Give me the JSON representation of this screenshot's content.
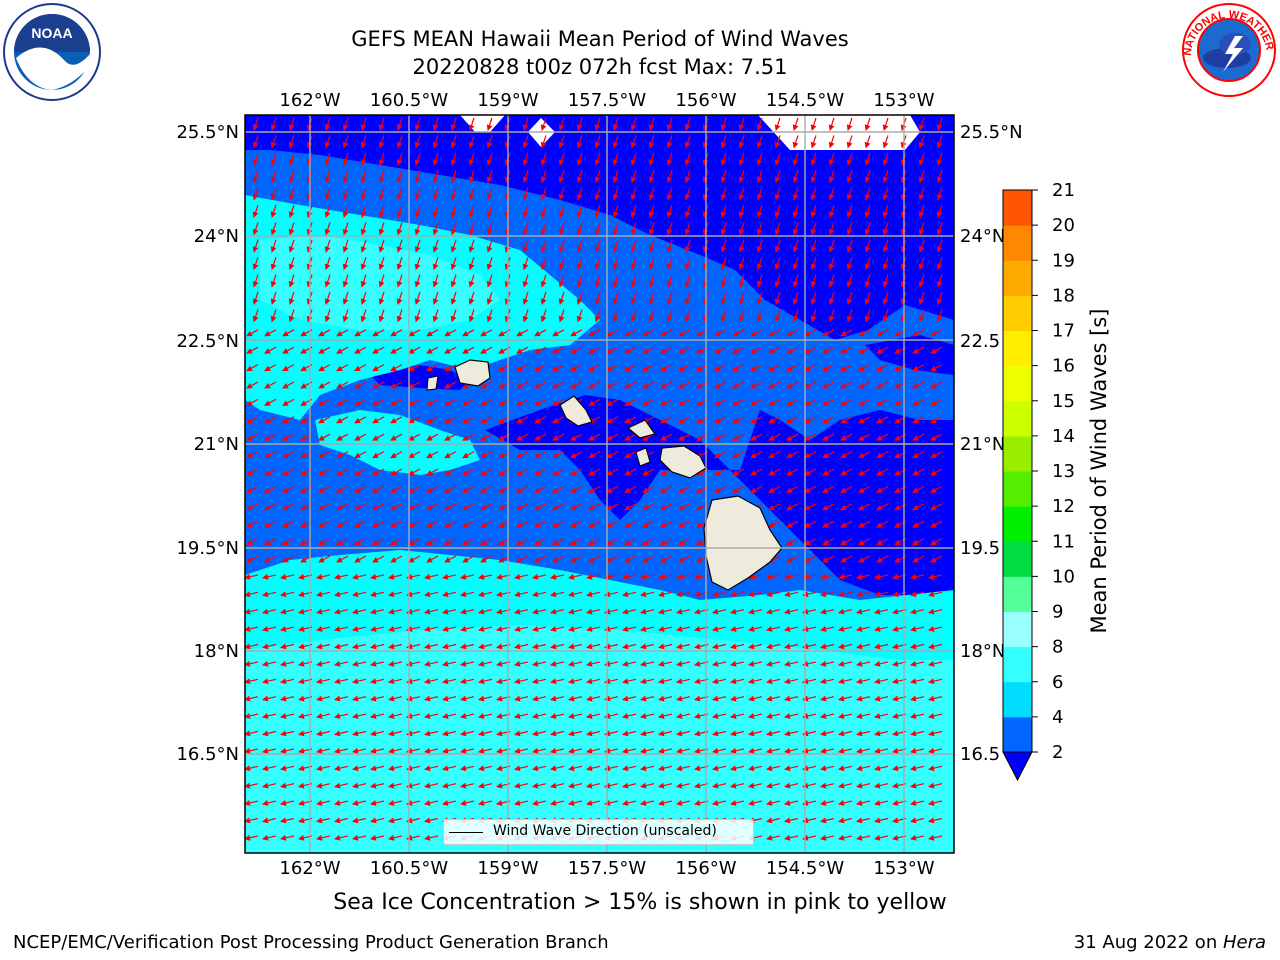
{
  "title": {
    "line1": "GEFS MEAN Hawaii Mean Period of Wind Waves",
    "line2": "20220828 t00z 072h fcst   Max: 7.51"
  },
  "logos": {
    "left": "noaa-logo",
    "left_text": "NOAA",
    "right": "nws-logo",
    "right_text": "NATIONAL WEATHER SERVICE"
  },
  "map": {
    "lon_labels": [
      "162°W",
      "160.5°W",
      "159°W",
      "157.5°W",
      "156°W",
      "154.5°W",
      "153°W"
    ],
    "lat_labels_left": [
      "25.5°N",
      "24°N",
      "22.5°N",
      "21°N",
      "19.5°N",
      "18°N",
      "16.5°N"
    ],
    "lat_labels_right": [
      "25.5°N",
      "24°N",
      "22.5",
      "21°N",
      "19.5",
      "18°N",
      "16.5"
    ],
    "legend_label": "Wind Wave Direction (unscaled)",
    "arrow_color": "#ff0000",
    "land_color": "#eeeadc"
  },
  "colorbar": {
    "label": "Mean Period of Wind Waves [s]",
    "ticks": [
      "2",
      "4",
      "6",
      "8",
      "9",
      "10",
      "11",
      "12",
      "13",
      "14",
      "15",
      "16",
      "17",
      "18",
      "19",
      "20",
      "21"
    ],
    "colors": [
      "#0066ff",
      "#00ddff",
      "#33ffff",
      "#99ffff",
      "#55ff99",
      "#00dd44",
      "#00ee00",
      "#55ee00",
      "#99ee00",
      "#ccff00",
      "#eeff00",
      "#ffee00",
      "#ffcc00",
      "#ffaa00",
      "#ff8800",
      "#ff5500",
      "#ff2200",
      "#ff0000"
    ],
    "under_color": "#0000ff"
  },
  "subnote": "Sea Ice Concentration > 15% is shown in pink to yellow",
  "footer": {
    "left": "NCEP/EMC/Verification Post Processing Product Generation Branch",
    "right_date": "31 Aug 2022 on ",
    "right_host": "Hera"
  }
}
